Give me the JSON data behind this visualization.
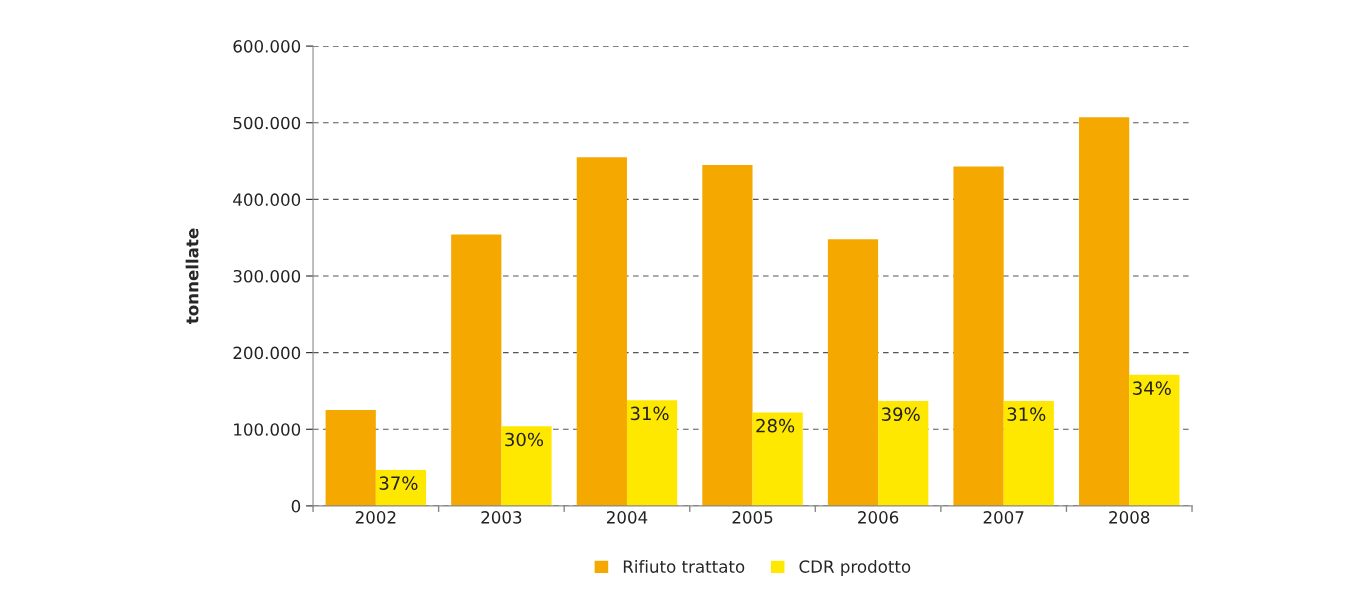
{
  "chart_data": {
    "type": "bar",
    "ylabel": "tonnellate",
    "categories": [
      "2002",
      "2003",
      "2004",
      "2005",
      "2006",
      "2007",
      "2008"
    ],
    "series": [
      {
        "name": "Rifiuto trattato",
        "color": "#f5a800",
        "values": [
          125000,
          354000,
          455000,
          445000,
          348000,
          443000,
          507000
        ]
      },
      {
        "name": "CDR prodotto",
        "color": "#ffe800",
        "values": [
          47000,
          104000,
          138000,
          122000,
          137000,
          137000,
          171000
        ]
      }
    ],
    "annotations": [
      {
        "text": "37%",
        "x": "2002",
        "y": 47000
      },
      {
        "text": "30%",
        "x": "2003",
        "y": 104000
      },
      {
        "text": "31%",
        "x": "2004",
        "y": 138000
      },
      {
        "text": "28%",
        "x": "2005",
        "y": 122000
      },
      {
        "text": "39%",
        "x": "2006",
        "y": 137000
      },
      {
        "text": "31%",
        "x": "2007",
        "y": 137000
      },
      {
        "text": "34%",
        "x": "2008",
        "y": 171000
      }
    ],
    "ylim": [
      0,
      600000
    ],
    "yticks": [
      {
        "value": 0,
        "label": "0"
      },
      {
        "value": 100000,
        "label": "100.000"
      },
      {
        "value": 200000,
        "label": "200.000"
      },
      {
        "value": 300000,
        "label": "300.000"
      },
      {
        "value": 400000,
        "label": "400.000"
      },
      {
        "value": 500000,
        "label": "500.000"
      },
      {
        "value": 600000,
        "label": "600.000"
      }
    ],
    "grid": "y",
    "legend": "bottom"
  }
}
